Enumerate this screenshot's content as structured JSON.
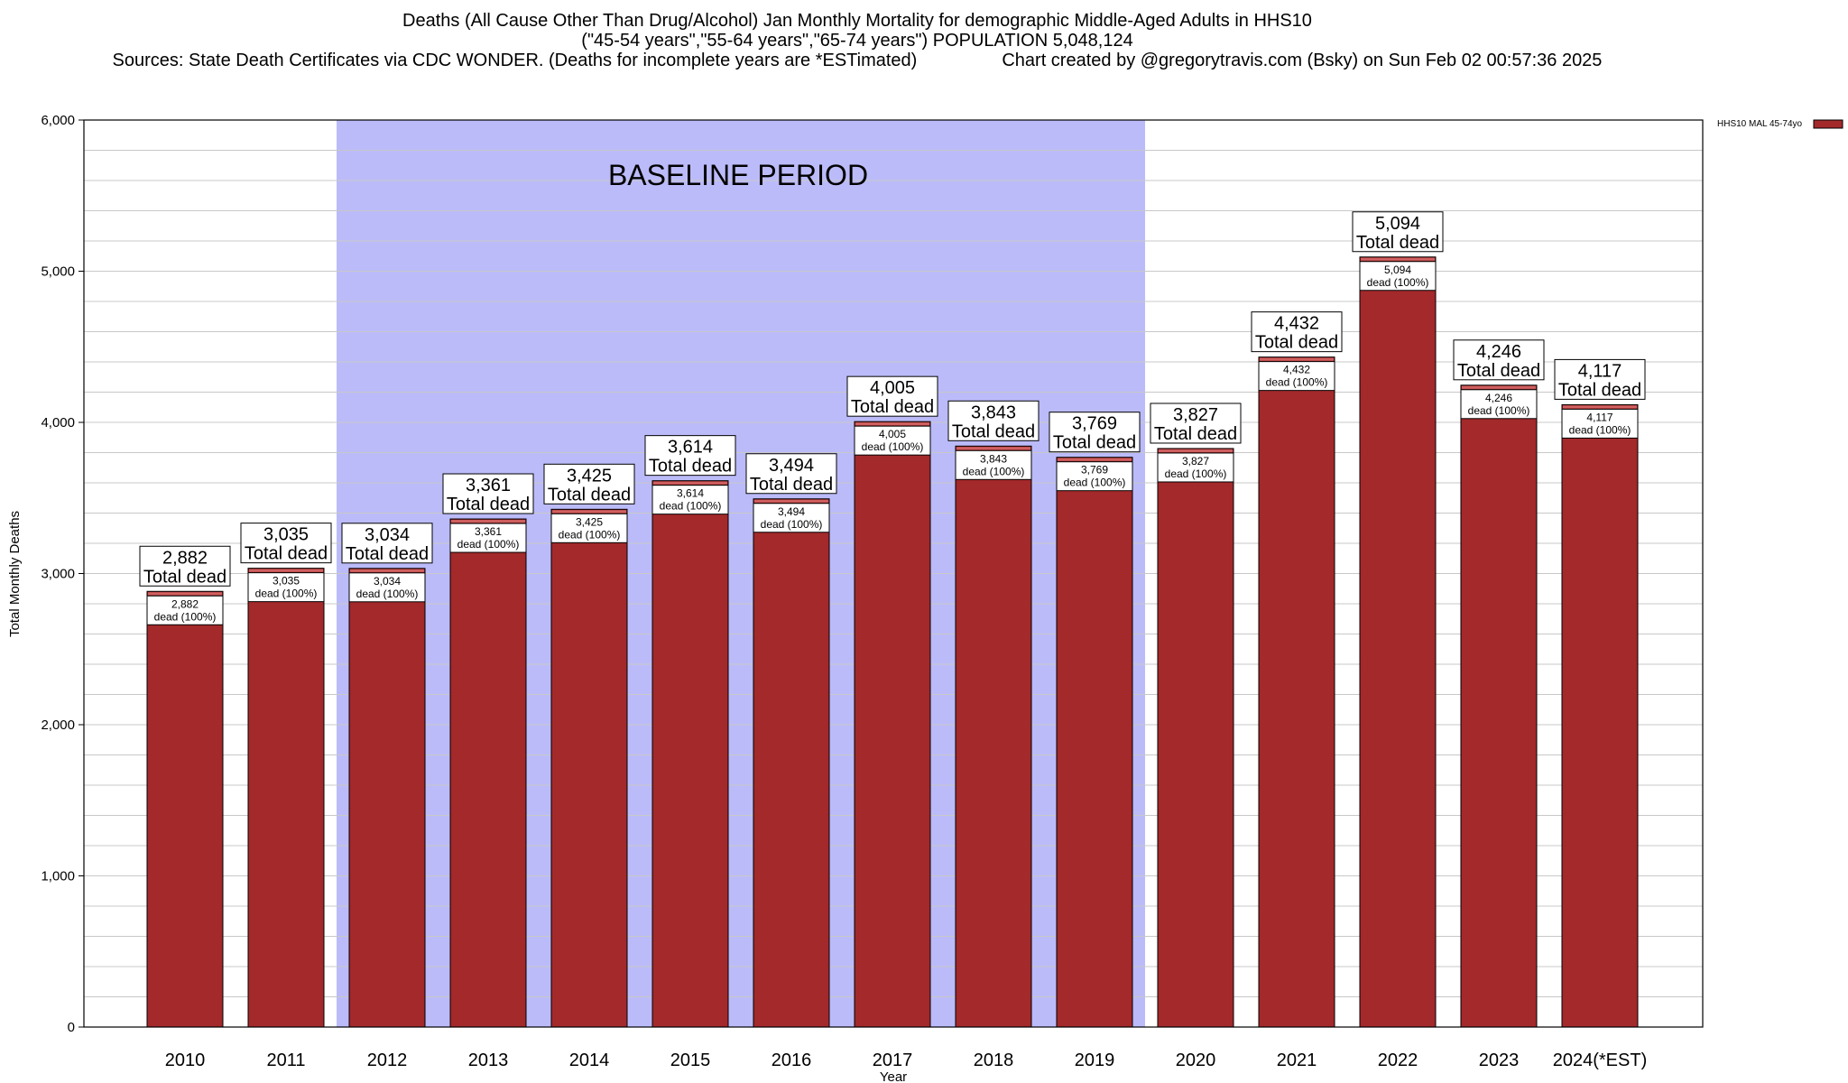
{
  "chart_data": {
    "type": "bar",
    "title": "Deaths (All Cause Other Than Drug/Alcohol) Jan Monthly Mortality for demographic Middle-Aged Adults in HHS10",
    "subtitle": "(\"45-54 years\",\"55-64 years\",\"65-74 years\") POPULATION 5,048,124",
    "source": "Sources: State Death Certificates via CDC WONDER. (Deaths for incomplete years are *ESTimated)",
    "credit": "Chart created by @gregorytravis.com (Bsky) on Sun Feb 02 00:57:36 2025",
    "xlabel": "Year",
    "ylabel": "Total Monthly Deaths",
    "ylim": [
      0,
      6000
    ],
    "y_ticks": [
      0,
      1000,
      2000,
      3000,
      4000,
      5000,
      6000
    ],
    "y_tick_labels": [
      "0",
      "1,000",
      "2,000",
      "3,000",
      "4,000",
      "5,000",
      "6,000"
    ],
    "minor_gridlines_per_major": 5,
    "grid": true,
    "legend_position": "top-right",
    "categories": [
      "2010",
      "2011",
      "2012",
      "2013",
      "2014",
      "2015",
      "2016",
      "2017",
      "2018",
      "2019",
      "2020",
      "2021",
      "2022",
      "2023",
      "2024(*EST)"
    ],
    "series": [
      {
        "name": "HHS10 MAL 45-74yo",
        "color": "#a3292b",
        "values": [
          2882,
          3035,
          3034,
          3361,
          3425,
          3614,
          3494,
          4005,
          3843,
          3769,
          3827,
          4432,
          5094,
          4246,
          4117
        ]
      }
    ],
    "top_labels": [
      "2,882",
      "3,035",
      "3,034",
      "3,361",
      "3,425",
      "3,614",
      "3,494",
      "4,005",
      "3,843",
      "3,769",
      "3,827",
      "4,432",
      "5,094",
      "4,246",
      "4,117"
    ],
    "top_label_suffix": "Total dead",
    "inner_labels": [
      "2,882",
      "3,035",
      "3,034",
      "3,361",
      "3,425",
      "3,614",
      "3,494",
      "4,005",
      "3,843",
      "3,769",
      "3,827",
      "4,432",
      "5,094",
      "4,246",
      "4,117"
    ],
    "inner_label_suffix": "dead (100%)",
    "baseline_period": {
      "label": "BASELINE PERIOD",
      "start": "2012",
      "end": "2019",
      "color": "#bbbbfa"
    },
    "colors": {
      "bar": "#a3292b",
      "bar_cap": "#d06060",
      "grid": "#c8c8c8",
      "axis": "#000000"
    }
  }
}
